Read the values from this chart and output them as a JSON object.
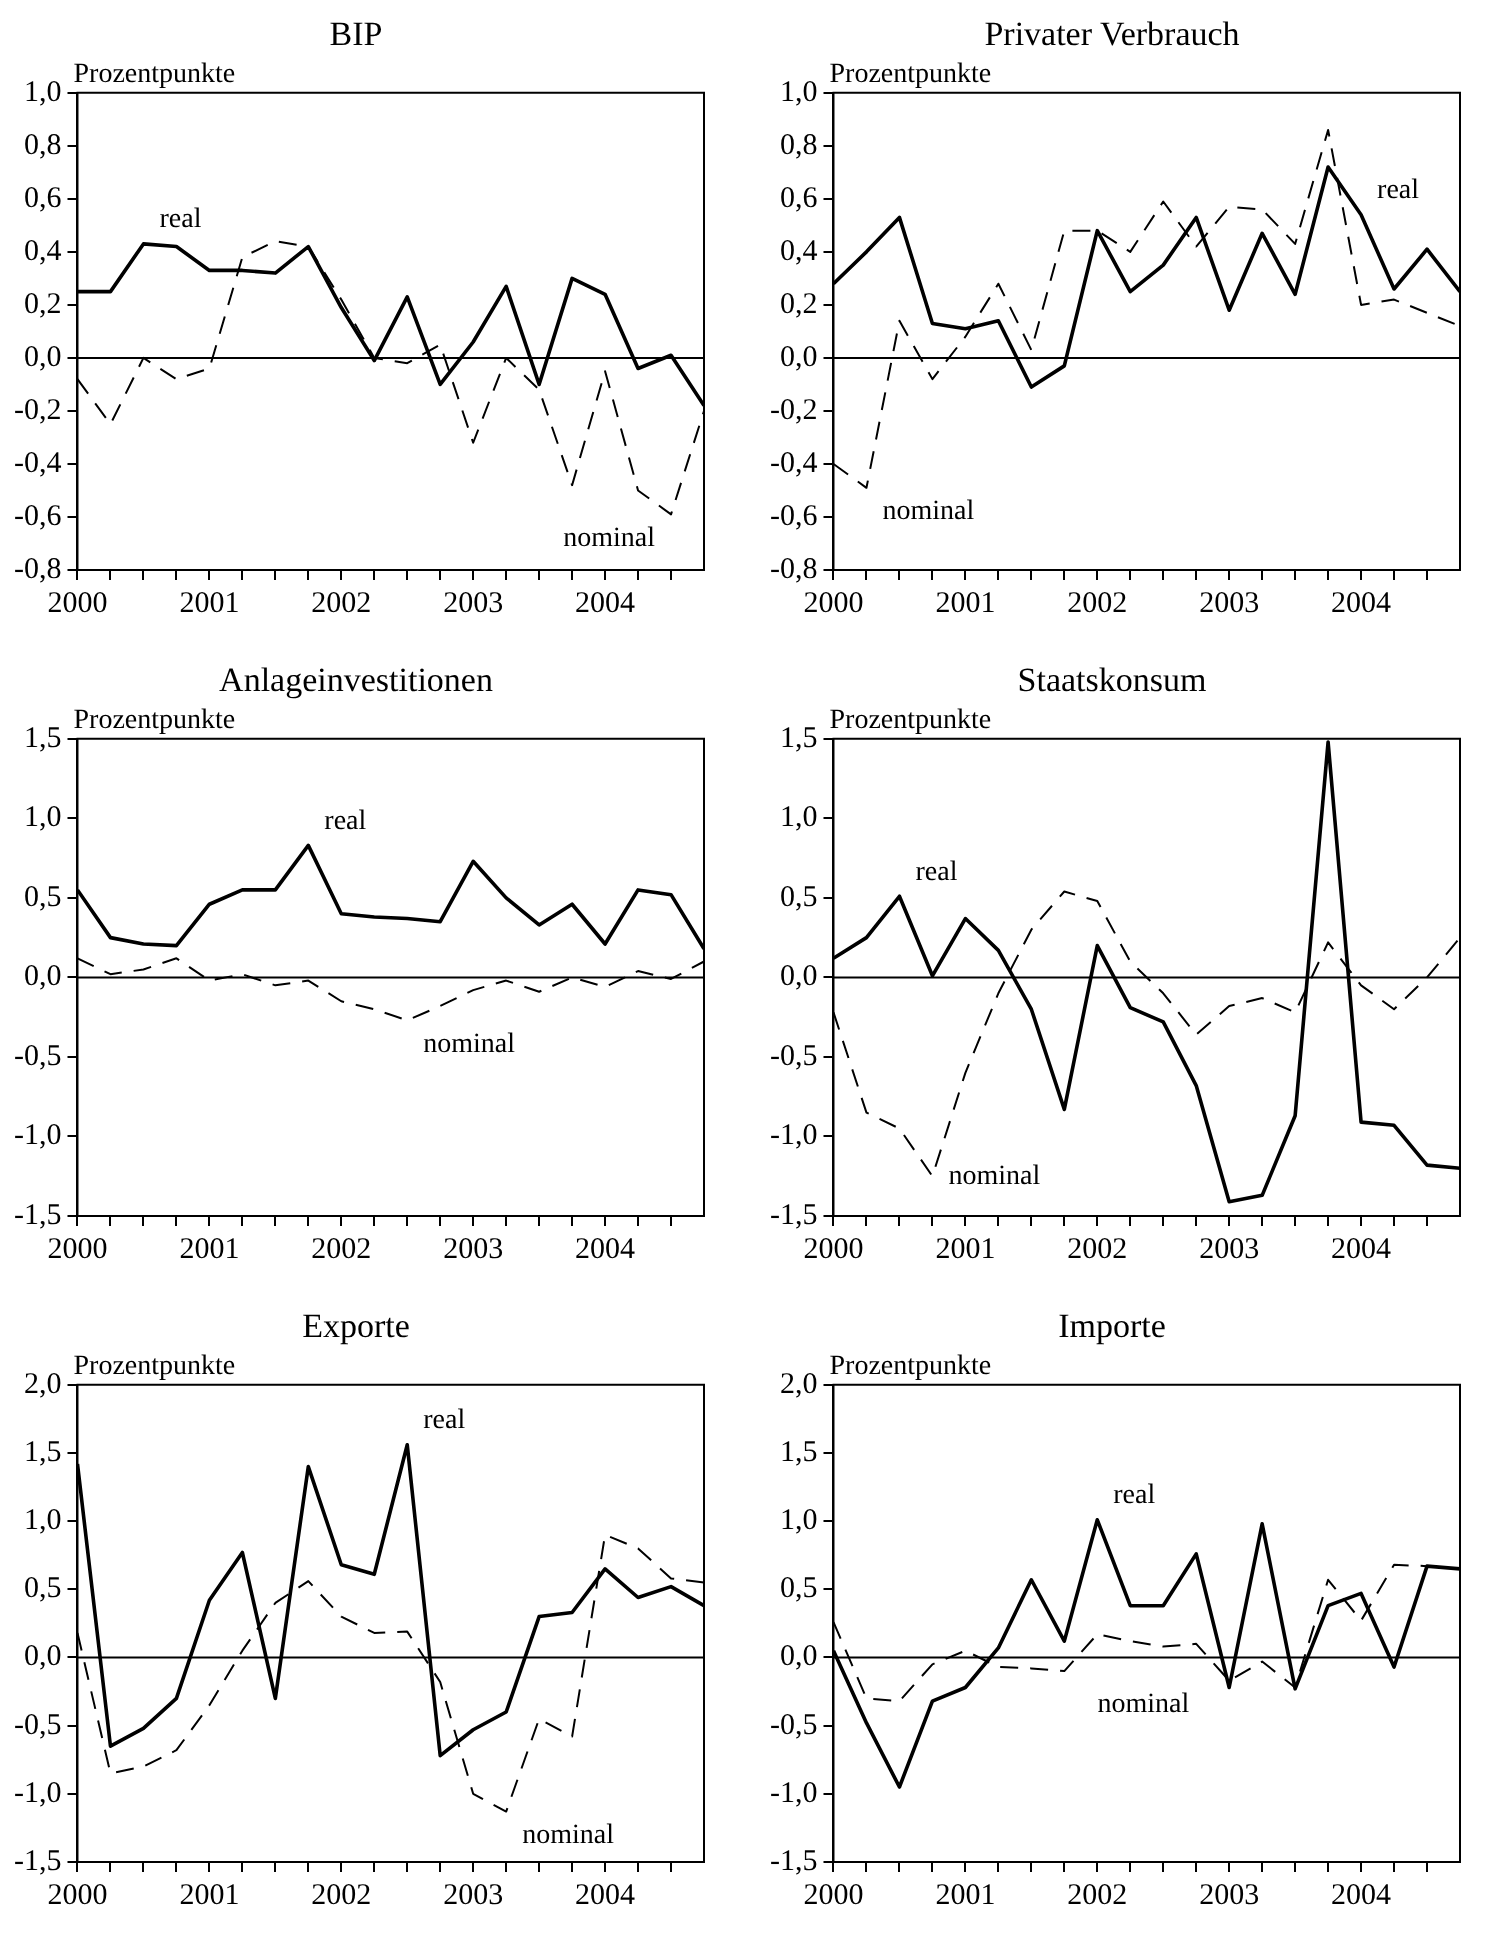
{
  "chart_data": [
    {
      "type": "line",
      "title": "BIP",
      "ylabel": "Prozentpunkte",
      "x": [
        2000,
        2000.25,
        2000.5,
        2000.75,
        2001,
        2001.25,
        2001.5,
        2001.75,
        2002,
        2002.25,
        2002.5,
        2002.75,
        2003,
        2003.25,
        2003.5,
        2003.75,
        2004,
        2004.25,
        2004.5,
        2004.75
      ],
      "series": [
        {
          "color": "#000000",
          "line_style": "solid",
          "name": "real",
          "values": [
            0.25,
            0.25,
            0.43,
            0.42,
            0.33,
            0.33,
            0.32,
            0.42,
            0.19,
            -0.01,
            0.23,
            -0.1,
            0.06,
            0.27,
            -0.1,
            0.3,
            0.24,
            -0.04,
            0.01,
            -0.18
          ]
        },
        {
          "color": "#000000",
          "line_style": "dashed",
          "name": "nominal",
          "values": [
            -0.08,
            -0.25,
            0.0,
            -0.08,
            -0.04,
            0.38,
            0.44,
            0.42,
            0.22,
            0.0,
            -0.02,
            0.05,
            -0.32,
            0.0,
            -0.12,
            -0.48,
            -0.05,
            -0.5,
            -0.59,
            -0.2
          ]
        }
      ],
      "xlim": [
        2000,
        2004.75
      ],
      "xticks": [
        2000,
        {
          "value": 2000.25,
          "label": null
        },
        {
          "value": 2000.5,
          "label": null
        },
        {
          "value": 2000.75,
          "label": null
        },
        2001,
        {
          "value": 2001.25,
          "label": null
        },
        {
          "value": 2001.5,
          "label": null
        },
        {
          "value": 2001.75,
          "label": null
        },
        2002,
        {
          "value": 2002.25,
          "label": null
        },
        {
          "value": 2002.5,
          "label": null
        },
        {
          "value": 2002.75,
          "label": null
        },
        2003,
        {
          "value": 2003.25,
          "label": null
        },
        {
          "value": 2003.5,
          "label": null
        },
        {
          "value": 2003.75,
          "label": null
        },
        2004,
        {
          "value": 2004.25,
          "label": null
        },
        {
          "value": 2004.5,
          "label": null
        }
      ],
      "ylim": [
        -0.8,
        1.0
      ],
      "yticks": [
        {
          "value": -0.8,
          "label": "-0,8"
        },
        {
          "value": -0.6,
          "label": "-0,6"
        },
        {
          "value": -0.4,
          "label": "-0,4"
        },
        {
          "value": -0.2,
          "label": "-0,2"
        },
        {
          "value": 0,
          "label": "0,0"
        },
        {
          "value": 0.2,
          "label": "0,2"
        },
        {
          "value": 0.4,
          "label": "0,4"
        },
        {
          "value": 0.6,
          "label": "0,6"
        },
        {
          "value": 0.8,
          "label": "0,8"
        },
        {
          "value": 1.0,
          "label": "1,0"
        }
      ],
      "ref_lines": [
        {
          "axis": "y",
          "value": 0,
          "color": "#000000"
        }
      ],
      "grid": false,
      "legend": false,
      "marker": "none"
    },
    {
      "type": "line",
      "title": "Privater Verbrauch",
      "ylabel": "Prozentpunkte",
      "x": [
        2000,
        2000.25,
        2000.5,
        2000.75,
        2001,
        2001.25,
        2001.5,
        2001.75,
        2002,
        2002.25,
        2002.5,
        2002.75,
        2003,
        2003.25,
        2003.5,
        2003.75,
        2004,
        2004.25,
        2004.5,
        2004.75
      ],
      "series": [
        {
          "color": "#000000",
          "line_style": "solid",
          "name": "real",
          "values": [
            0.28,
            0.4,
            0.53,
            0.13,
            0.11,
            0.14,
            -0.11,
            -0.03,
            0.48,
            0.25,
            0.35,
            0.53,
            0.18,
            0.47,
            0.24,
            0.72,
            0.54,
            0.26,
            0.41,
            0.25
          ]
        },
        {
          "color": "#000000",
          "line_style": "dashed",
          "name": "nominal",
          "values": [
            -0.4,
            -0.49,
            0.14,
            -0.08,
            0.08,
            0.28,
            0.03,
            0.48,
            0.48,
            0.4,
            0.59,
            0.42,
            0.57,
            0.56,
            0.43,
            0.86,
            0.2,
            0.22,
            0.17,
            0.12
          ]
        }
      ],
      "xlim": [
        2000,
        2004.75
      ],
      "xticks": [
        2000,
        {
          "value": 2000.25,
          "label": null
        },
        {
          "value": 2000.5,
          "label": null
        },
        {
          "value": 2000.75,
          "label": null
        },
        2001,
        {
          "value": 2001.25,
          "label": null
        },
        {
          "value": 2001.5,
          "label": null
        },
        {
          "value": 2001.75,
          "label": null
        },
        2002,
        {
          "value": 2002.25,
          "label": null
        },
        {
          "value": 2002.5,
          "label": null
        },
        {
          "value": 2002.75,
          "label": null
        },
        2003,
        {
          "value": 2003.25,
          "label": null
        },
        {
          "value": 2003.5,
          "label": null
        },
        {
          "value": 2003.75,
          "label": null
        },
        2004,
        {
          "value": 2004.25,
          "label": null
        },
        {
          "value": 2004.5,
          "label": null
        }
      ],
      "ylim": [
        -0.8,
        1.0
      ],
      "yticks": [
        {
          "value": -0.8,
          "label": "-0,8"
        },
        {
          "value": -0.6,
          "label": "-0,6"
        },
        {
          "value": -0.4,
          "label": "-0,4"
        },
        {
          "value": -0.2,
          "label": "-0,2"
        },
        {
          "value": 0,
          "label": "0,0"
        },
        {
          "value": 0.2,
          "label": "0,2"
        },
        {
          "value": 0.4,
          "label": "0,4"
        },
        {
          "value": 0.6,
          "label": "0,6"
        },
        {
          "value": 0.8,
          "label": "0,8"
        },
        {
          "value": 1.0,
          "label": "1,0"
        }
      ],
      "ref_lines": [
        {
          "axis": "y",
          "value": 0,
          "color": "#000000"
        }
      ],
      "grid": false,
      "legend": false,
      "marker": "none"
    },
    {
      "type": "line",
      "title": "Anlageinvestitionen",
      "ylabel": "Prozentpunkte",
      "x": [
        2000,
        2000.25,
        2000.5,
        2000.75,
        2001,
        2001.25,
        2001.5,
        2001.75,
        2002,
        2002.25,
        2002.5,
        2002.75,
        2003,
        2003.25,
        2003.5,
        2003.75,
        2004,
        2004.25,
        2004.5,
        2004.75
      ],
      "series": [
        {
          "color": "#000000",
          "line_style": "solid",
          "name": "real",
          "values": [
            0.55,
            0.25,
            0.21,
            0.2,
            0.46,
            0.55,
            0.55,
            0.83,
            0.4,
            0.38,
            0.37,
            0.35,
            0.73,
            0.5,
            0.33,
            0.46,
            0.21,
            0.55,
            0.52,
            0.18
          ]
        },
        {
          "color": "#000000",
          "line_style": "dashed",
          "name": "nominal",
          "values": [
            0.12,
            0.02,
            0.05,
            0.12,
            -0.02,
            0.02,
            -0.05,
            -0.02,
            -0.15,
            -0.2,
            -0.27,
            -0.18,
            -0.08,
            -0.02,
            -0.09,
            0.0,
            -0.06,
            0.04,
            -0.01,
            0.1
          ]
        }
      ],
      "xlim": [
        2000,
        2004.75
      ],
      "xticks": [
        2000,
        {
          "value": 2000.25,
          "label": null
        },
        {
          "value": 2000.5,
          "label": null
        },
        {
          "value": 2000.75,
          "label": null
        },
        2001,
        {
          "value": 2001.25,
          "label": null
        },
        {
          "value": 2001.5,
          "label": null
        },
        {
          "value": 2001.75,
          "label": null
        },
        2002,
        {
          "value": 2002.25,
          "label": null
        },
        {
          "value": 2002.5,
          "label": null
        },
        {
          "value": 2002.75,
          "label": null
        },
        2003,
        {
          "value": 2003.25,
          "label": null
        },
        {
          "value": 2003.5,
          "label": null
        },
        {
          "value": 2003.75,
          "label": null
        },
        2004,
        {
          "value": 2004.25,
          "label": null
        },
        {
          "value": 2004.5,
          "label": null
        }
      ],
      "ylim": [
        -1.5,
        1.5
      ],
      "yticks": [
        {
          "value": -1.5,
          "label": "-1,5"
        },
        {
          "value": -1,
          "label": "-1,0"
        },
        {
          "value": -0.5,
          "label": "-0,5"
        },
        {
          "value": 0,
          "label": "0,0"
        },
        {
          "value": 0.5,
          "label": "0,5"
        },
        {
          "value": 1,
          "label": "1,0"
        },
        {
          "value": 1.5,
          "label": "1,5"
        }
      ],
      "ref_lines": [
        {
          "axis": "y",
          "value": 0,
          "color": "#000000"
        }
      ],
      "grid": false,
      "legend": false,
      "marker": "none"
    },
    {
      "type": "line",
      "title": "Staatskonsum",
      "ylabel": "Prozentpunkte",
      "x": [
        2000,
        2000.25,
        2000.5,
        2000.75,
        2001,
        2001.25,
        2001.5,
        2001.75,
        2002,
        2002.25,
        2002.5,
        2002.75,
        2003,
        2003.25,
        2003.5,
        2003.75,
        2004,
        2004.25,
        2004.5,
        2004.75
      ],
      "series": [
        {
          "color": "#000000",
          "line_style": "solid",
          "name": "real",
          "values": [
            0.12,
            0.25,
            0.51,
            0.01,
            0.37,
            0.17,
            -0.2,
            -0.83,
            0.2,
            -0.19,
            -0.28,
            -0.68,
            -1.41,
            -1.37,
            -0.87,
            1.48,
            -0.91,
            -0.93,
            -1.18,
            -1.2
          ]
        },
        {
          "color": "#000000",
          "line_style": "dashed",
          "name": "nominal",
          "values": [
            -0.22,
            -0.85,
            -0.95,
            -1.25,
            -0.6,
            -0.1,
            0.3,
            0.54,
            0.48,
            0.1,
            -0.1,
            -0.36,
            -0.18,
            -0.13,
            -0.22,
            0.22,
            -0.05,
            -0.2,
            0.0,
            0.25
          ]
        }
      ],
      "xlim": [
        2000,
        2004.75
      ],
      "xticks": [
        2000,
        {
          "value": 2000.25,
          "label": null
        },
        {
          "value": 2000.5,
          "label": null
        },
        {
          "value": 2000.75,
          "label": null
        },
        2001,
        {
          "value": 2001.25,
          "label": null
        },
        {
          "value": 2001.5,
          "label": null
        },
        {
          "value": 2001.75,
          "label": null
        },
        2002,
        {
          "value": 2002.25,
          "label": null
        },
        {
          "value": 2002.5,
          "label": null
        },
        {
          "value": 2002.75,
          "label": null
        },
        2003,
        {
          "value": 2003.25,
          "label": null
        },
        {
          "value": 2003.5,
          "label": null
        },
        {
          "value": 2003.75,
          "label": null
        },
        2004,
        {
          "value": 2004.25,
          "label": null
        },
        {
          "value": 2004.5,
          "label": null
        }
      ],
      "ylim": [
        -1.5,
        1.5
      ],
      "yticks": [
        {
          "value": -1.5,
          "label": "-1,5"
        },
        {
          "value": -1,
          "label": "-1,0"
        },
        {
          "value": -0.5,
          "label": "-0,5"
        },
        {
          "value": 0,
          "label": "0,0"
        },
        {
          "value": 0.5,
          "label": "0,5"
        },
        {
          "value": 1,
          "label": "1,0"
        },
        {
          "value": 1.5,
          "label": "1,5"
        }
      ],
      "ref_lines": [
        {
          "axis": "y",
          "value": 0,
          "color": "#000000"
        }
      ],
      "grid": false,
      "legend": false,
      "marker": "none"
    },
    {
      "type": "line",
      "title": "Exporte",
      "ylabel": "Prozentpunkte",
      "x": [
        2000,
        2000.25,
        2000.5,
        2000.75,
        2001,
        2001.25,
        2001.5,
        2001.75,
        2002,
        2002.25,
        2002.5,
        2002.75,
        2003,
        2003.25,
        2003.5,
        2003.75,
        2004,
        2004.25,
        2004.5,
        2004.75
      ],
      "series": [
        {
          "color": "#000000",
          "line_style": "solid",
          "name": "real",
          "values": [
            1.42,
            -0.65,
            -0.52,
            -0.3,
            0.42,
            0.77,
            -0.3,
            1.4,
            0.68,
            0.61,
            1.56,
            -0.72,
            -0.53,
            -0.4,
            0.3,
            0.33,
            0.65,
            0.44,
            0.52,
            0.38
          ]
        },
        {
          "color": "#000000",
          "line_style": "dashed",
          "name": "nominal",
          "values": [
            0.18,
            -0.85,
            -0.8,
            -0.68,
            -0.35,
            0.05,
            0.4,
            0.56,
            0.3,
            0.18,
            0.19,
            -0.18,
            -1.0,
            -1.13,
            -0.45,
            -0.58,
            0.9,
            0.8,
            0.58,
            0.55
          ]
        }
      ],
      "xlim": [
        2000,
        2004.75
      ],
      "xticks": [
        2000,
        {
          "value": 2000.25,
          "label": null
        },
        {
          "value": 2000.5,
          "label": null
        },
        {
          "value": 2000.75,
          "label": null
        },
        2001,
        {
          "value": 2001.25,
          "label": null
        },
        {
          "value": 2001.5,
          "label": null
        },
        {
          "value": 2001.75,
          "label": null
        },
        2002,
        {
          "value": 2002.25,
          "label": null
        },
        {
          "value": 2002.5,
          "label": null
        },
        {
          "value": 2002.75,
          "label": null
        },
        2003,
        {
          "value": 2003.25,
          "label": null
        },
        {
          "value": 2003.5,
          "label": null
        },
        {
          "value": 2003.75,
          "label": null
        },
        2004,
        {
          "value": 2004.25,
          "label": null
        },
        {
          "value": 2004.5,
          "label": null
        }
      ],
      "ylim": [
        -1.5,
        2.0
      ],
      "yticks": [
        {
          "value": -1.5,
          "label": "-1,5"
        },
        {
          "value": -1,
          "label": "-1,0"
        },
        {
          "value": -0.5,
          "label": "-0,5"
        },
        {
          "value": 0,
          "label": "0,0"
        },
        {
          "value": 0.5,
          "label": "0,5"
        },
        {
          "value": 1,
          "label": "1,0"
        },
        {
          "value": 1.5,
          "label": "1,5"
        },
        {
          "value": 2,
          "label": "2,0"
        }
      ],
      "ref_lines": [
        {
          "axis": "y",
          "value": 0,
          "color": "#000000"
        }
      ],
      "grid": false,
      "legend": false,
      "marker": "none"
    },
    {
      "type": "line",
      "title": "Importe",
      "ylabel": "Prozentpunkte",
      "x": [
        2000,
        2000.25,
        2000.5,
        2000.75,
        2001,
        2001.25,
        2001.5,
        2001.75,
        2002,
        2002.25,
        2002.5,
        2002.75,
        2003,
        2003.25,
        2003.5,
        2003.75,
        2004,
        2004.25,
        2004.5,
        2004.75
      ],
      "series": [
        {
          "color": "#000000",
          "line_style": "solid",
          "name": "real",
          "values": [
            0.05,
            -0.48,
            -0.95,
            -0.32,
            -0.22,
            0.07,
            0.57,
            0.12,
            1.01,
            0.38,
            0.38,
            0.76,
            -0.22,
            0.98,
            -0.23,
            0.38,
            0.47,
            -0.07,
            0.67,
            0.65
          ]
        },
        {
          "color": "#000000",
          "line_style": "dashed",
          "name": "nominal",
          "values": [
            0.26,
            -0.3,
            -0.32,
            -0.05,
            0.05,
            -0.07,
            -0.08,
            -0.1,
            0.17,
            0.12,
            0.08,
            0.1,
            -0.17,
            -0.03,
            -0.22,
            0.57,
            0.27,
            0.68,
            0.67,
            0.65
          ]
        }
      ],
      "xlim": [
        2000,
        2004.75
      ],
      "xticks": [
        2000,
        {
          "value": 2000.25,
          "label": null
        },
        {
          "value": 2000.5,
          "label": null
        },
        {
          "value": 2000.75,
          "label": null
        },
        2001,
        {
          "value": 2001.25,
          "label": null
        },
        {
          "value": 2001.5,
          "label": null
        },
        {
          "value": 2001.75,
          "label": null
        },
        2002,
        {
          "value": 2002.25,
          "label": null
        },
        {
          "value": 2002.5,
          "label": null
        },
        {
          "value": 2002.75,
          "label": null
        },
        2003,
        {
          "value": 2003.25,
          "label": null
        },
        {
          "value": 2003.5,
          "label": null
        },
        {
          "value": 2003.75,
          "label": null
        },
        2004,
        {
          "value": 2004.25,
          "label": null
        },
        {
          "value": 2004.5,
          "label": null
        }
      ],
      "ylim": [
        -1.5,
        2.0
      ],
      "yticks": [
        {
          "value": -1.5,
          "label": "-1,5"
        },
        {
          "value": -1,
          "label": "-1,0"
        },
        {
          "value": -0.5,
          "label": "-0,5"
        },
        {
          "value": 0,
          "label": "0,0"
        },
        {
          "value": 0.5,
          "label": "0,5"
        },
        {
          "value": 1,
          "label": "1,0"
        },
        {
          "value": 1.5,
          "label": "1,5"
        },
        {
          "value": 2,
          "label": "2,0"
        }
      ],
      "ref_lines": [
        {
          "axis": "y",
          "value": 0,
          "color": "#000000"
        }
      ],
      "grid": false,
      "legend": false,
      "marker": "none"
    }
  ]
}
